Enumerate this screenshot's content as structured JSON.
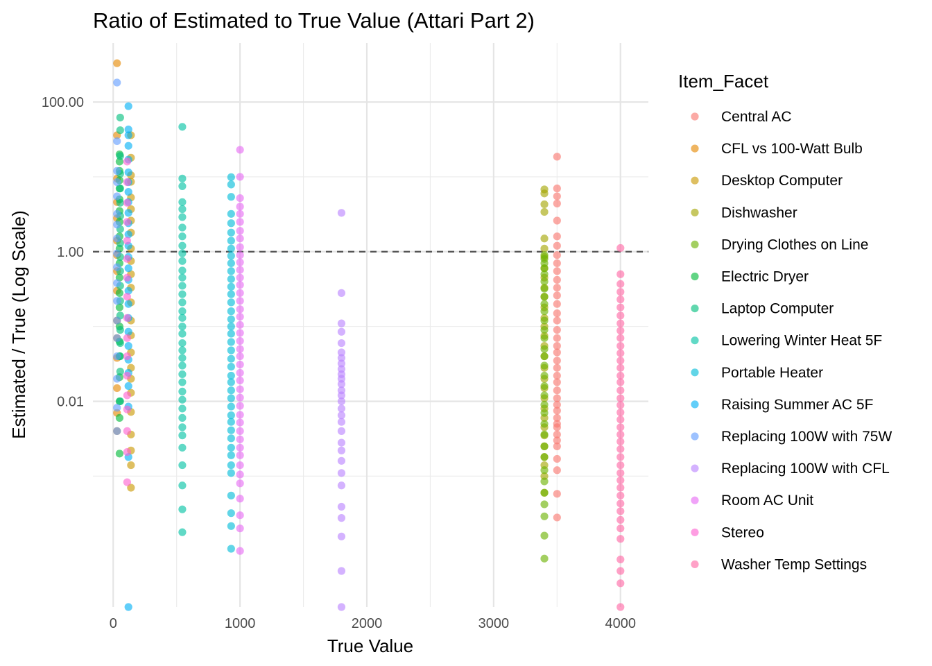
{
  "chart_data": {
    "type": "scatter",
    "title": "Ratio of Estimated to True Value (Attari Part 2)",
    "xlabel": "True Value",
    "ylabel": "Estimated / True (Log Scale)",
    "x_ticks": [
      {
        "value": 0,
        "label": "0"
      },
      {
        "value": 1000,
        "label": "1000"
      },
      {
        "value": 2000,
        "label": "2000"
      },
      {
        "value": 3000,
        "label": "3000"
      },
      {
        "value": 4000,
        "label": "4000"
      }
    ],
    "y_scale": "log10",
    "y_ticks": [
      {
        "value": 0.01,
        "label": "0.01"
      },
      {
        "value": 1,
        "label": "1.00"
      },
      {
        "value": 100,
        "label": "100.00"
      }
    ],
    "xlim": [
      -160,
      4220
    ],
    "ylim": [
      1.78e-05,
      615
    ],
    "reference_line": {
      "y": 1,
      "style": "dashed",
      "color": "#555555"
    },
    "grid": true,
    "legend": {
      "title": "Item_Facet",
      "position": "right"
    },
    "series": [
      {
        "name": "Central AC",
        "color": "#F8766D",
        "x": 3500,
        "values": [
          18.6,
          7.0,
          5.5,
          4.4,
          2.6,
          1.6,
          1.2,
          0.9,
          0.7,
          0.55,
          0.42,
          0.33,
          0.26,
          0.2,
          0.15,
          0.12,
          0.09,
          0.07,
          0.055,
          0.045,
          0.035,
          0.028,
          0.022,
          0.018,
          0.014,
          0.011,
          0.009,
          0.0075,
          0.006,
          0.005,
          0.0045,
          0.0036,
          0.003,
          0.0025,
          0.0017,
          0.0012,
          0.00058,
          0.00028
        ]
      },
      {
        "name": "CFL vs 100-Watt Bulb",
        "color": "#E58700",
        "x": 30,
        "values": [
          330,
          36,
          9.5,
          4.6,
          2.8,
          1.4,
          0.9,
          0.55,
          0.3,
          0.12,
          0.07,
          0.038,
          0.015,
          0.007,
          0.004
        ]
      },
      {
        "name": "Desktop Computer",
        "color": "#C99800",
        "x": 140,
        "values": [
          36,
          18,
          10.5,
          8.6,
          5.3,
          3.7,
          2.6,
          1.8,
          1.1,
          0.75,
          0.5,
          0.33,
          0.21,
          0.12,
          0.076,
          0.045,
          0.028,
          0.02,
          0.013,
          0.0072,
          0.0036,
          0.0022,
          0.0014,
          0.0007
        ]
      },
      {
        "name": "Dishwasher",
        "color": "#A3A500",
        "x": 3400,
        "values": [
          6.8,
          6.0,
          4.3,
          3.4,
          1.5,
          1.1,
          0.85,
          0.6,
          0.45,
          0.33,
          0.25,
          0.18,
          0.13,
          0.1,
          0.075,
          0.055,
          0.04,
          0.028,
          0.02,
          0.015,
          0.011,
          0.008,
          0.006,
          0.0045,
          0.0035,
          0.0025,
          0.0018,
          0.0014,
          0.001,
          0.0006
        ]
      },
      {
        "name": "Drying Clothes on Line",
        "color": "#6BB100",
        "x": 3400,
        "values": [
          0.9,
          0.8,
          0.7,
          0.6,
          0.5,
          0.4,
          0.32,
          0.25,
          0.2,
          0.16,
          0.12,
          0.09,
          0.07,
          0.05,
          0.04,
          0.03,
          0.022,
          0.016,
          0.012,
          0.009,
          0.007,
          0.005,
          0.0036,
          0.0025,
          0.0018,
          0.0012,
          0.00085,
          0.0006,
          0.00042,
          0.00029,
          0.00016,
          7.9e-05
        ]
      },
      {
        "name": "Electric Dryer",
        "color": "#00BA38",
        "x": 50,
        "values": [
          20,
          16,
          12,
          9,
          7,
          5,
          3.5,
          2.5,
          1.6,
          1.1,
          0.7,
          0.45,
          0.28,
          0.18,
          0.1,
          0.063,
          0.04,
          0.021,
          0.01,
          0.006,
          0.002
        ]
      },
      {
        "name": "Laptop Computer",
        "color": "#00BF7D",
        "x": 55,
        "values": [
          62,
          42,
          19,
          11,
          7,
          4.5,
          3,
          2,
          1.3,
          0.85,
          0.55,
          0.35,
          0.22,
          0.14,
          0.09,
          0.06,
          0.04,
          0.025,
          0.01
        ]
      },
      {
        "name": "Lowering Winter Heat 5F",
        "color": "#00C1A3",
        "x": 545,
        "values": [
          46.6,
          9.5,
          7.5,
          4.6,
          3.7,
          2.9,
          2.1,
          1.6,
          1.2,
          0.95,
          0.75,
          0.56,
          0.45,
          0.35,
          0.27,
          0.21,
          0.16,
          0.13,
          0.1,
          0.08,
          0.06,
          0.048,
          0.038,
          0.03,
          0.023,
          0.018,
          0.0135,
          0.0105,
          0.008,
          0.006,
          0.0045,
          0.0035,
          0.0024,
          0.0014,
          0.00075,
          0.00036,
          0.000178
        ]
      },
      {
        "name": "Portable Heater",
        "color": "#00BCD8",
        "x": 930,
        "values": [
          9.9,
          7.9,
          5.4,
          3.2,
          2.4,
          1.8,
          1.4,
          1.1,
          0.88,
          0.7,
          0.55,
          0.43,
          0.34,
          0.27,
          0.21,
          0.16,
          0.125,
          0.1,
          0.08,
          0.062,
          0.048,
          0.037,
          0.029,
          0.022,
          0.018,
          0.014,
          0.011,
          0.0085,
          0.0065,
          0.0053,
          0.0041,
          0.0032,
          0.0024,
          0.0019,
          0.0014,
          0.0011,
          0.00055,
          0.00032,
          0.000215,
          0.000107
        ]
      },
      {
        "name": "Raising Summer AC 5F",
        "color": "#00B0F6",
        "x": 120,
        "values": [
          88,
          43,
          36,
          26,
          17,
          11.5,
          8.5,
          6.3,
          4.6,
          3.3,
          2.4,
          1.7,
          1.2,
          0.85,
          0.6,
          0.42,
          0.3,
          0.2,
          0.13,
          0.085,
          0.055,
          0.036,
          0.024,
          0.016,
          0.0085,
          0.0018,
          1.78e-05
        ]
      },
      {
        "name": "Replacing 100W with 75W",
        "color": "#619CFF",
        "x": 30,
        "values": [
          182,
          30,
          12,
          8.5,
          5.5,
          3.2,
          2.3,
          1.5,
          0.95,
          0.62,
          0.38,
          0.22,
          0.12,
          0.07,
          0.04,
          0.02,
          0.0082,
          0.004
        ]
      },
      {
        "name": "Replacing 100W with CFL",
        "color": "#B983FF",
        "x": 1800,
        "values": [
          3.3,
          0.28,
          0.11,
          0.085,
          0.06,
          0.045,
          0.038,
          0.032,
          0.027,
          0.023,
          0.02,
          0.017,
          0.014,
          0.012,
          0.01,
          0.008,
          0.0065,
          0.0053,
          0.004,
          0.0028,
          0.0022,
          0.0016,
          0.0011,
          0.00075,
          0.00039,
          0.000276,
          0.000156,
          5.4e-05,
          1.78e-05
        ]
      },
      {
        "name": "Room AC Unit",
        "color": "#E76BF3",
        "x": 1000,
        "values": [
          23,
          10,
          5.2,
          4.0,
          3.2,
          2.5,
          1.9,
          1.5,
          1.15,
          0.9,
          0.72,
          0.57,
          0.45,
          0.36,
          0.28,
          0.22,
          0.17,
          0.135,
          0.105,
          0.082,
          0.064,
          0.05,
          0.04,
          0.031,
          0.024,
          0.019,
          0.0145,
          0.0112,
          0.0087,
          0.0066,
          0.0052,
          0.004,
          0.0031,
          0.0024,
          0.0019,
          0.0014,
          0.00105,
          0.0008,
          0.0005,
          0.0003,
          0.0002,
          0.0001
        ]
      },
      {
        "name": "Stereo",
        "color": "#FD61D1",
        "x": 110,
        "values": [
          16,
          8.5,
          4.5,
          2.5,
          1.4,
          0.8,
          0.45,
          0.25,
          0.13,
          0.07,
          0.04,
          0.022,
          0.012,
          0.0078,
          0.004,
          0.0021,
          0.00083
        ]
      },
      {
        "name": "Washer Temp Settings",
        "color": "#FF67A4",
        "x": 4000,
        "values": [
          1.12,
          0.5,
          0.37,
          0.29,
          0.23,
          0.18,
          0.14,
          0.11,
          0.088,
          0.07,
          0.055,
          0.044,
          0.035,
          0.028,
          0.022,
          0.018,
          0.014,
          0.011,
          0.0089,
          0.0071,
          0.0057,
          0.0045,
          0.0036,
          0.0029,
          0.0023,
          0.0018,
          0.0014,
          0.0011,
          0.00088,
          0.0007,
          0.00055,
          0.00043,
          0.00034,
          0.00026,
          0.0002,
          0.000145,
          7.7e-05,
          5.4e-05,
          3.7e-05,
          1.78e-05
        ]
      }
    ]
  }
}
